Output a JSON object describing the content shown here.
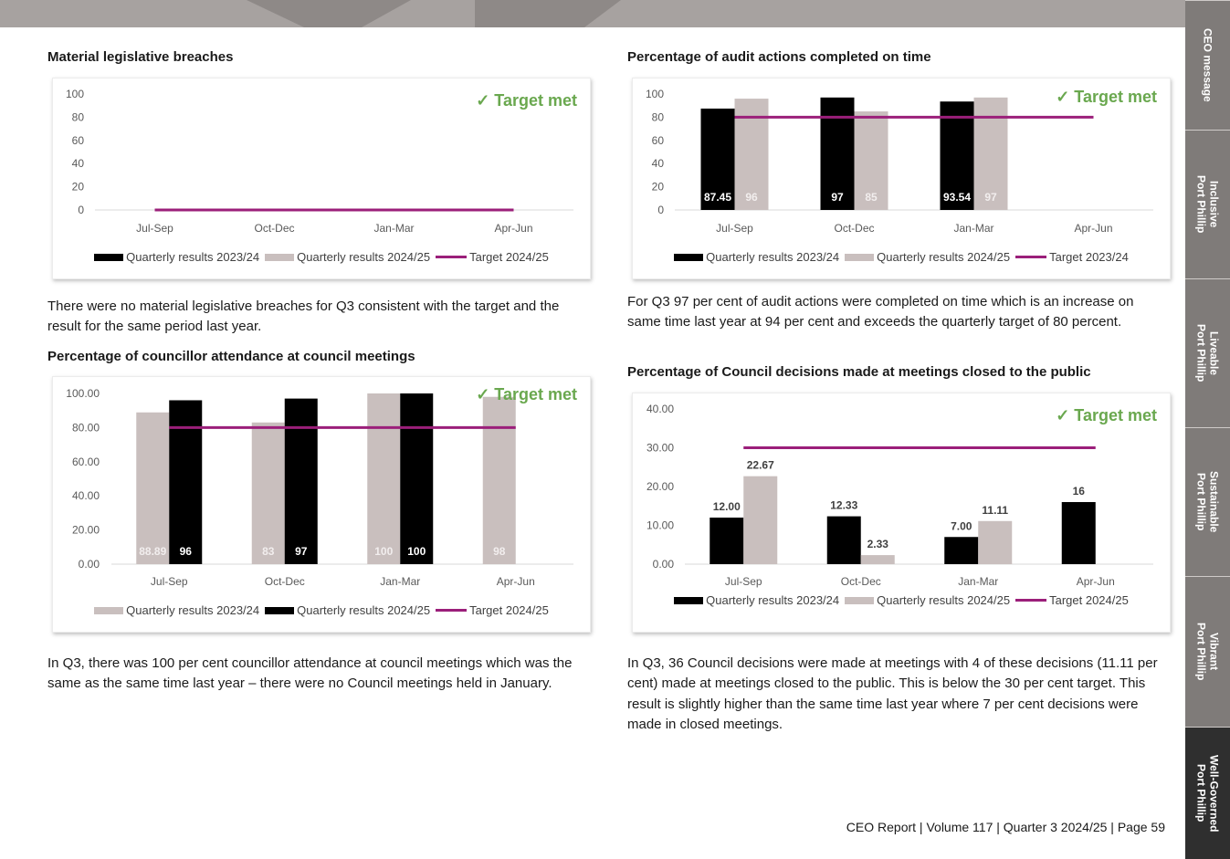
{
  "colors": {
    "black_bar": "#000000",
    "grey_bar": "#c9bfbe",
    "target_line": "#9b1f7a",
    "target_met": "#6aa84f",
    "tab_bg": "#7f7b79",
    "tab_active": "#2f2f2f"
  },
  "side_tabs": [
    {
      "label": "CEO message",
      "active": false
    },
    {
      "label": "Inclusive\nPort Phillip",
      "active": false
    },
    {
      "label": "Liveable\nPort Phillip",
      "active": false
    },
    {
      "label": "Sustainable\nPort Phillip",
      "active": false
    },
    {
      "label": "Vibrant\nPort Phillip",
      "active": false
    },
    {
      "label": "Well-Governed\nPort Phillip",
      "active": true
    }
  ],
  "sections": {
    "breaches": {
      "title": "Material legislative breaches",
      "target_met": "✓ Target met",
      "paragraph": "There were no material legislative breaches for Q3 consistent with the target and the result for the same period last year."
    },
    "audit": {
      "title": "Percentage of audit actions completed on time",
      "target_met": "✓ Target met",
      "paragraph": "For Q3 97 per cent of audit actions were completed on time which is an increase on same time last year at 94 per cent and exceeds the quarterly target of 80 percent."
    },
    "attendance": {
      "title": "Percentage of councillor attendance at council meetings",
      "target_met": "✓ Target met",
      "paragraph": "In Q3, there was 100 per cent councillor attendance at council meetings which was the same as the same time last year – there were no Council meetings held in January."
    },
    "closed": {
      "title": "Percentage of Council decisions made at meetings closed to the public",
      "target_met": "✓ Target met",
      "paragraph": "In Q3, 36 Council decisions were made at meetings with 4 of these decisions (11.11 per cent) made at meetings closed to the public. This is below the 30 per cent target. This result is slightly higher than the same time last year where 7 per cent decisions were made in closed meetings."
    }
  },
  "chart_data": [
    {
      "id": "breaches",
      "type": "bar",
      "categories": [
        "Jul-Sep",
        "Oct-Dec",
        "Jan-Mar",
        "Apr-Jun"
      ],
      "yticks": [
        "0",
        "20",
        "40",
        "60",
        "80",
        "100"
      ],
      "ylim": [
        0,
        100
      ],
      "series": [
        {
          "name": "Quarterly results 2023/24",
          "color": "black",
          "values": [
            0,
            0,
            0,
            0
          ],
          "labels": [
            "",
            "",
            "",
            ""
          ]
        },
        {
          "name": "Quarterly results 2024/25",
          "color": "grey",
          "values": [
            0,
            0,
            0,
            0
          ],
          "labels": [
            "",
            "",
            "",
            ""
          ]
        }
      ],
      "target": {
        "name": "Target 2024/25",
        "value": 0,
        "from": 0,
        "to": 3
      }
    },
    {
      "id": "audit",
      "type": "bar",
      "categories": [
        "Jul-Sep",
        "Oct-Dec",
        "Jan-Mar",
        "Apr-Jun"
      ],
      "yticks": [
        "0",
        "20",
        "40",
        "60",
        "80",
        "100"
      ],
      "ylim": [
        0,
        100
      ],
      "series": [
        {
          "name": "Quarterly results 2023/24",
          "color": "black",
          "values": [
            87.45,
            97,
            93.54,
            null
          ],
          "labels": [
            "87.45",
            "97",
            "93.54",
            ""
          ]
        },
        {
          "name": "Quarterly results 2024/25",
          "color": "grey",
          "values": [
            96,
            85,
            97,
            null
          ],
          "labels": [
            "96",
            "85",
            "97",
            ""
          ]
        }
      ],
      "target": {
        "name": "Target 2023/24",
        "value": 80,
        "from": 0,
        "to": 3
      }
    },
    {
      "id": "attendance",
      "type": "bar",
      "categories": [
        "Jul-Sep",
        "Oct-Dec",
        "Jan-Mar",
        "Apr-Jun"
      ],
      "yticks": [
        "0.00",
        "20.00",
        "40.00",
        "60.00",
        "80.00",
        "100.00"
      ],
      "ylim": [
        0,
        100
      ],
      "series": [
        {
          "name": "Quarterly results 2023/24",
          "color": "grey",
          "values": [
            88.89,
            83,
            100,
            98
          ],
          "labels": [
            "88.89",
            "83",
            "100",
            "98"
          ]
        },
        {
          "name": "Quarterly results 2024/25",
          "color": "black",
          "values": [
            96,
            97,
            100,
            null
          ],
          "labels": [
            "96",
            "97",
            "100",
            ""
          ]
        }
      ],
      "target": {
        "name": "Target 2024/25",
        "value": 80,
        "from": 0,
        "to": 3
      }
    },
    {
      "id": "closed",
      "type": "bar",
      "categories": [
        "Jul-Sep",
        "Oct-Dec",
        "Jan-Mar",
        "Apr-Jun"
      ],
      "yticks": [
        "0.00",
        "10.00",
        "20.00",
        "30.00",
        "40.00"
      ],
      "ylim": [
        0,
        40
      ],
      "series": [
        {
          "name": "Quarterly results 2023/24",
          "color": "black",
          "values": [
            12,
            12.33,
            7,
            16
          ],
          "labels": [
            "12.00",
            "12.33",
            "7.00",
            "16"
          ]
        },
        {
          "name": "Quarterly results 2024/25",
          "color": "grey",
          "values": [
            22.67,
            2.33,
            11.11,
            null
          ],
          "labels": [
            "22.67",
            "2.33",
            "11.11",
            ""
          ]
        }
      ],
      "target": {
        "name": "Target 2024/25",
        "value": 30,
        "from": 0,
        "to": 3
      }
    }
  ],
  "footer": "CEO Report | Volume 117  | Quarter 3 2024/25 | Page 59"
}
